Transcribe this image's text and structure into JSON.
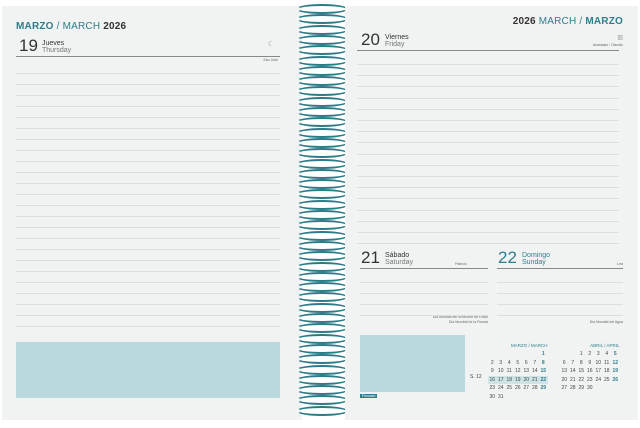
{
  "left": {
    "header_es": "MARZO",
    "sep": " / ",
    "header_en": "MARCH",
    "year": " 2026",
    "day": {
      "num": "19",
      "es": "Jueves",
      "en": "Thursday",
      "saint": "San José"
    }
  },
  "right": {
    "year": "2026 ",
    "header_en": "MARCH",
    "sep": " / ",
    "header_es": "MARZO",
    "day20": {
      "num": "20",
      "es": "Viernes",
      "en": "Friday",
      "saint": "Anastasio / Claudio"
    },
    "day21": {
      "num": "21",
      "es": "Sábado",
      "en": "Saturday",
      "saint": "Patricio",
      "note1": "Día Mundial del Síndrome de Down",
      "note2": "Día Mundial de la Poesía"
    },
    "day22": {
      "num": "22",
      "es": "Domingo",
      "en": "Sunday",
      "saint": "Lea",
      "note1": "Día Mundial del Agua"
    },
    "brand": "Finocam",
    "week_label": "S. 12",
    "march": {
      "title": "MARZO / MARCH",
      "weeks": [
        [
          "",
          "",
          "",
          "",
          "",
          "",
          "1"
        ],
        [
          "2",
          "3",
          "4",
          "5",
          "6",
          "7",
          "8"
        ],
        [
          "9",
          "10",
          "11",
          "12",
          "13",
          "14",
          "15"
        ],
        [
          "16",
          "17",
          "18",
          "19",
          "20",
          "21",
          "22"
        ],
        [
          "23",
          "24",
          "25",
          "26",
          "27",
          "28",
          "29"
        ],
        [
          "30",
          "31",
          "",
          "",
          "",
          "",
          ""
        ]
      ]
    },
    "april": {
      "title": "ABRIL / APRIL",
      "weeks": [
        [
          "",
          "",
          "1",
          "2",
          "3",
          "4",
          "5"
        ],
        [
          "6",
          "7",
          "8",
          "9",
          "10",
          "11",
          "12"
        ],
        [
          "13",
          "14",
          "15",
          "16",
          "17",
          "18",
          "19"
        ],
        [
          "20",
          "21",
          "22",
          "23",
          "24",
          "25",
          "26"
        ],
        [
          "27",
          "28",
          "29",
          "30",
          "",
          "",
          ""
        ]
      ]
    }
  },
  "colors": {
    "accent": "#2f7e8c",
    "box": "#b9d9df"
  }
}
